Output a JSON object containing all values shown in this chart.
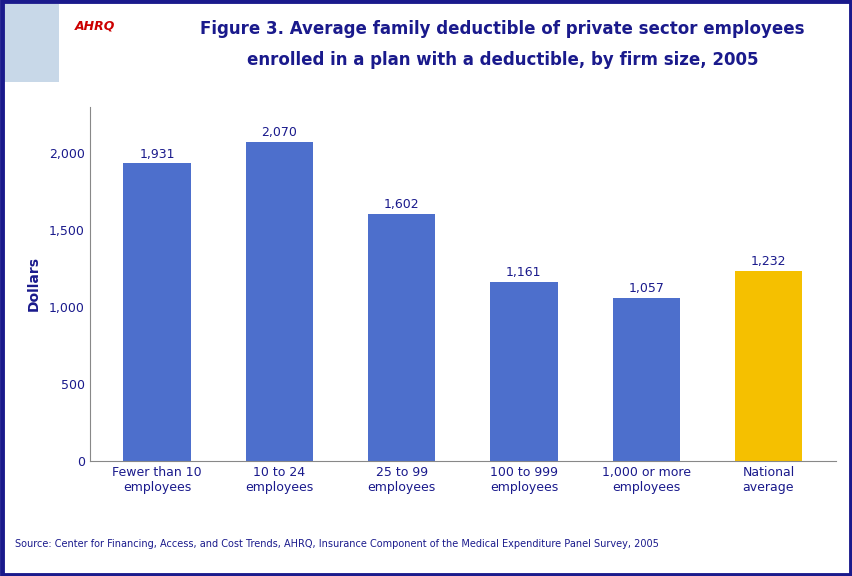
{
  "categories": [
    "Fewer than 10\nemployees",
    "10 to 24\nemployees",
    "25 to 99\nemployees",
    "100 to 999\nemployees",
    "1,000 or more\nemployees",
    "National\naverage"
  ],
  "values": [
    1931,
    2070,
    1602,
    1161,
    1057,
    1232
  ],
  "value_labels": [
    "1,931",
    "2,070",
    "1,602",
    "1,161",
    "1,057",
    "1,232"
  ],
  "title_line1": "Figure 3. Average family deductible of private sector employees",
  "title_line2": "enrolled in a plan with a deductible, by firm size, 2005",
  "ylabel": "Dollars",
  "ylim": [
    0,
    2300
  ],
  "yticks": [
    0,
    500,
    1000,
    1500,
    2000
  ],
  "source_text": "Source: Center for Financing, Access, and Cost Trends, AHRQ, Insurance Component of the Medical Expenditure Panel Survey, 2005",
  "background_color": "#ffffff",
  "border_color": "#1a1a8c",
  "title_color": "#1a1a8c",
  "bar_label_color": "#1a1a8c",
  "ylabel_color": "#1a1a8c",
  "tick_label_color": "#1a1a8c",
  "source_color": "#1a1a8c",
  "blue_bar_color": "#4d6fcc",
  "gold_bar_color": "#f5c000",
  "axis_label_fontsize": 10,
  "tick_fontsize": 9,
  "value_label_fontsize": 9,
  "source_fontsize": 7,
  "title_fontsize": 12
}
